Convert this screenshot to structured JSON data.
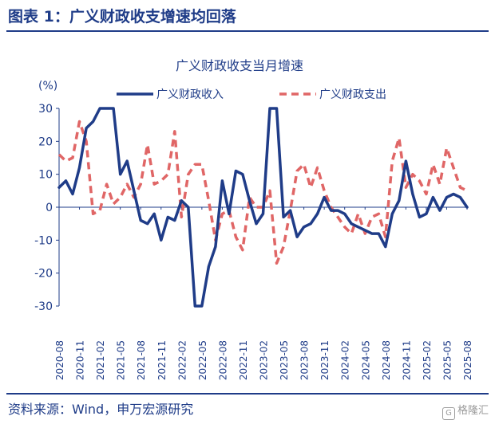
{
  "figure": {
    "title": "图表 1：广义财政收支增速均回落",
    "source": "资料来源：Wind，申万宏源研究",
    "watermark": "格隆汇",
    "watermark_icon": "glh-logo-icon",
    "accent_color": "#1f3c88"
  },
  "chart_data": {
    "type": "line",
    "title": "广义财政收支当月增速",
    "ylabel": "(%)",
    "xlabel": "",
    "ylim": [
      -30,
      30
    ],
    "yticks": [
      30,
      20,
      10,
      0,
      -10,
      -20,
      -30
    ],
    "xtick_labels": [
      "2020-08",
      "2020-11",
      "2021-02",
      "2021-05",
      "2021-08",
      "2021-11",
      "2022-02",
      "2022-05",
      "2022-08",
      "2022-11",
      "2023-02",
      "2023-05",
      "2023-08",
      "2023-11",
      "2024-02",
      "2024-05",
      "2024-08",
      "2024-11",
      "2025-02",
      "2025-05",
      "2025-08"
    ],
    "x": [
      "2020-08",
      "2020-09",
      "2020-10",
      "2020-11",
      "2020-12",
      "2021-01",
      "2021-02",
      "2021-03",
      "2021-04",
      "2021-05",
      "2021-06",
      "2021-07",
      "2021-08",
      "2021-09",
      "2021-10",
      "2021-11",
      "2021-12",
      "2022-01",
      "2022-02",
      "2022-03",
      "2022-04",
      "2022-05",
      "2022-06",
      "2022-07",
      "2022-08",
      "2022-09",
      "2022-10",
      "2022-11",
      "2022-12",
      "2023-01",
      "2023-02",
      "2023-03",
      "2023-04",
      "2023-05",
      "2023-06",
      "2023-07",
      "2023-08",
      "2023-09",
      "2023-10",
      "2023-11",
      "2023-12",
      "2024-01",
      "2024-02",
      "2024-03",
      "2024-04",
      "2024-05",
      "2024-06",
      "2024-07",
      "2024-08",
      "2024-09",
      "2024-10",
      "2024-11",
      "2024-12",
      "2025-01",
      "2025-02",
      "2025-03",
      "2025-04",
      "2025-05",
      "2025-06",
      "2025-07",
      "2025-08"
    ],
    "grid": false,
    "legend_position": "top",
    "series": [
      {
        "name": "广义财政收入",
        "color": "#1f3c88",
        "style": "solid",
        "values": [
          6,
          8,
          4,
          12,
          24,
          26,
          30,
          30,
          30,
          10,
          14,
          5,
          -4,
          -5,
          -2,
          -10,
          -3,
          -4,
          2,
          0,
          -30,
          -30,
          -18,
          -12,
          8,
          -2,
          11,
          10,
          2,
          -5,
          -2,
          30,
          30,
          -3,
          -1,
          -9,
          -6,
          -5,
          -2,
          3,
          -1,
          -1,
          -2,
          -5,
          -6,
          -7,
          -8,
          -8,
          -12,
          -2,
          2,
          14,
          4,
          -3,
          -2,
          3,
          -1,
          3,
          4,
          3,
          0
        ]
      },
      {
        "name": "广义财政支出",
        "color": "#e06666",
        "style": "dashed",
        "values": [
          16,
          14,
          15,
          26,
          20,
          -2,
          -1,
          7,
          1,
          3,
          7,
          3,
          7,
          19,
          7,
          8,
          10,
          23,
          -3,
          10,
          13,
          13,
          2,
          -10,
          -2,
          -1,
          -9,
          -13,
          3,
          0,
          0,
          5,
          -17,
          -12,
          -1,
          11,
          13,
          6,
          12,
          5,
          0,
          -3,
          -6,
          -8,
          -2,
          -8,
          -3,
          -2,
          -9,
          14,
          21,
          6,
          10,
          8,
          4,
          13,
          7,
          18,
          12,
          6,
          5
        ]
      }
    ]
  }
}
